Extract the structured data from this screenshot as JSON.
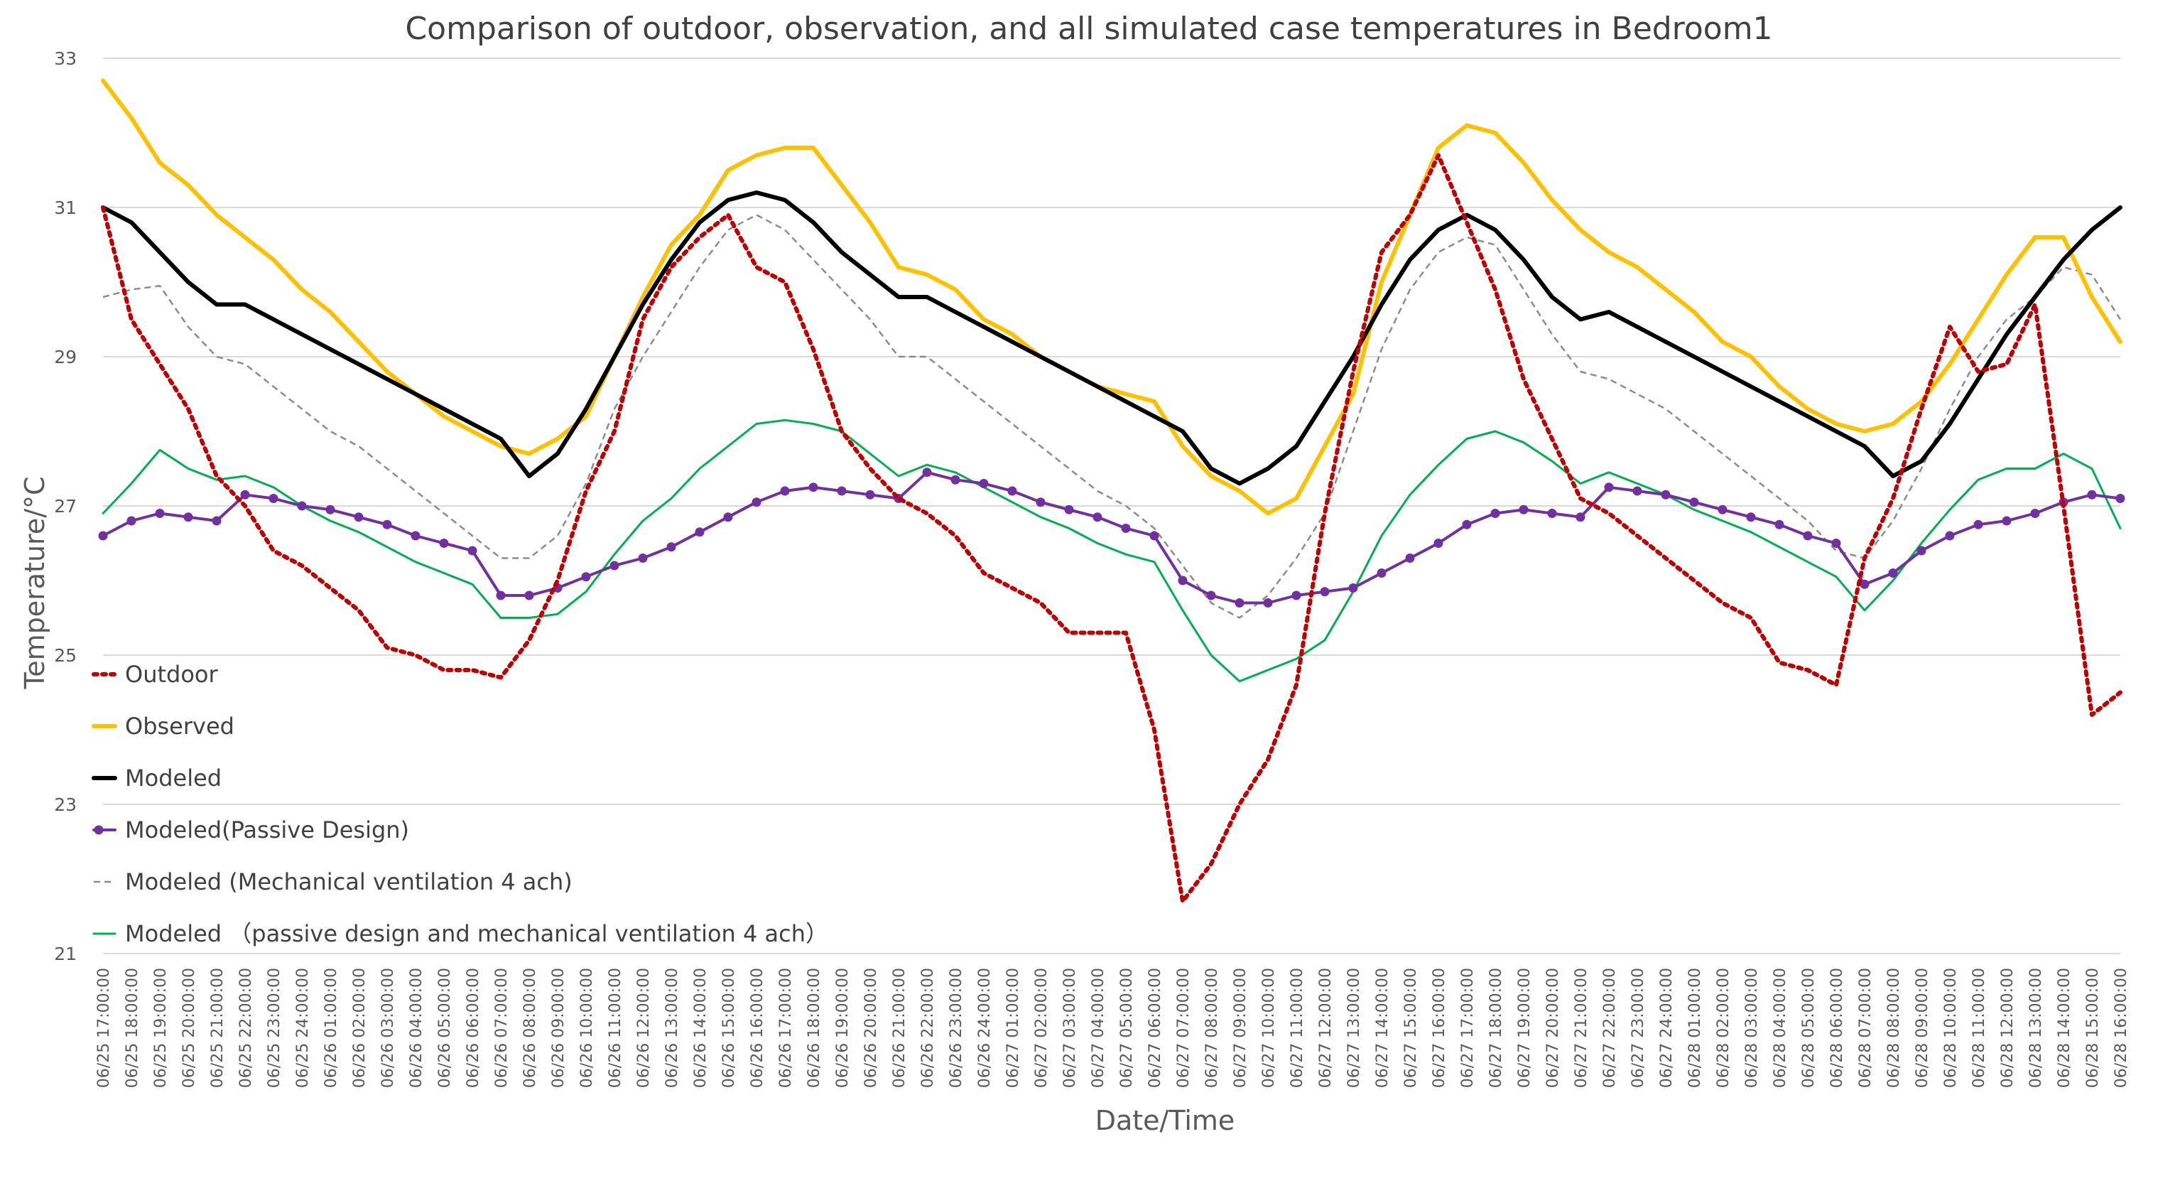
{
  "chart_data": {
    "type": "line",
    "title": "Comparison of outdoor, observation, and all simulated case temperatures in Bedroom1",
    "xlabel": "Date/Time",
    "ylabel": "Temperature/°C",
    "ylim": [
      21,
      33
    ],
    "yticks": [
      21,
      23,
      25,
      27,
      29,
      31,
      33
    ],
    "grid": "horizontal",
    "legend_position": "lower-left",
    "categories": [
      "06/25 17:00:00",
      "06/25 18:00:00",
      "06/25 19:00:00",
      "06/25 20:00:00",
      "06/25 21:00:00",
      "06/25 22:00:00",
      "06/25 23:00:00",
      "06/25 24:00:00",
      "06/26 01:00:00",
      "06/26 02:00:00",
      "06/26 03:00:00",
      "06/26 04:00:00",
      "06/26 05:00:00",
      "06/26 06:00:00",
      "06/26 07:00:00",
      "06/26 08:00:00",
      "06/26 09:00:00",
      "06/26 10:00:00",
      "06/26 11:00:00",
      "06/26 12:00:00",
      "06/26 13:00:00",
      "06/26 14:00:00",
      "06/26 15:00:00",
      "06/26 16:00:00",
      "06/26 17:00:00",
      "06/26 18:00:00",
      "06/26 19:00:00",
      "06/26 20:00:00",
      "06/26 21:00:00",
      "06/26 22:00:00",
      "06/26 23:00:00",
      "06/26 24:00:00",
      "06/27 01:00:00",
      "06/27 02:00:00",
      "06/27 03:00:00",
      "06/27 04:00:00",
      "06/27 05:00:00",
      "06/27 06:00:00",
      "06/27 07:00:00",
      "06/27 08:00:00",
      "06/27 09:00:00",
      "06/27 10:00:00",
      "06/27 11:00:00",
      "06/27 12:00:00",
      "06/27 13:00:00",
      "06/27 14:00:00",
      "06/27 15:00:00",
      "06/27 16:00:00",
      "06/27 17:00:00",
      "06/27 18:00:00",
      "06/27 19:00:00",
      "06/27 20:00:00",
      "06/27 21:00:00",
      "06/27 22:00:00",
      "06/27 23:00:00",
      "06/27 24:00:00",
      "06/28 01:00:00",
      "06/28 02:00:00",
      "06/28 03:00:00",
      "06/28 04:00:00",
      "06/28 05:00:00",
      "06/28 06:00:00",
      "06/28 07:00:00",
      "06/28 08:00:00",
      "06/28 09:00:00",
      "06/28 10:00:00",
      "06/28 11:00:00",
      "06/28 12:00:00",
      "06/28 13:00:00",
      "06/28 14:00:00",
      "06/28 15:00:00",
      "06/28 16:00:00"
    ],
    "series": [
      {
        "name": "Outdoor",
        "color": "#c00000",
        "style": "dotted",
        "markers": false,
        "values": [
          31.0,
          29.5,
          28.9,
          28.3,
          27.4,
          27.0,
          26.4,
          26.2,
          25.9,
          25.6,
          25.1,
          25.0,
          24.8,
          24.8,
          24.7,
          25.2,
          26.0,
          27.2,
          28.0,
          29.5,
          30.2,
          30.6,
          30.9,
          30.2,
          30.0,
          29.1,
          28.0,
          27.5,
          27.1,
          26.9,
          26.6,
          26.1,
          25.9,
          25.7,
          25.3,
          25.3,
          25.3,
          24.0,
          21.7,
          22.2,
          23.0,
          23.6,
          24.6,
          26.9,
          28.8,
          30.4,
          30.9,
          31.7,
          30.8,
          29.9,
          28.7,
          27.9,
          27.1,
          26.9,
          26.6,
          26.3,
          26.0,
          25.7,
          25.5,
          24.9,
          24.8,
          24.6,
          26.3,
          27.1,
          28.3,
          29.4,
          28.8,
          28.9,
          29.7,
          27.0,
          24.2,
          24.5
        ]
      },
      {
        "name": "Observed",
        "color": "#ffc000",
        "style": "solid",
        "markers": false,
        "values": [
          32.7,
          32.2,
          31.6,
          31.3,
          30.9,
          30.6,
          30.3,
          29.9,
          29.6,
          29.2,
          28.8,
          28.5,
          28.2,
          28.0,
          27.8,
          27.7,
          27.9,
          28.2,
          29.0,
          29.8,
          30.5,
          30.9,
          31.5,
          31.7,
          31.8,
          31.8,
          31.3,
          30.8,
          30.2,
          30.1,
          29.9,
          29.5,
          29.3,
          29.0,
          28.8,
          28.6,
          28.5,
          28.4,
          27.8,
          27.4,
          27.2,
          26.9,
          27.1,
          27.8,
          28.5,
          30.0,
          30.9,
          31.8,
          32.1,
          32.0,
          31.6,
          31.1,
          30.7,
          30.4,
          30.2,
          29.9,
          29.6,
          29.2,
          29.0,
          28.6,
          28.3,
          28.1,
          28.0,
          28.1,
          28.4,
          28.9,
          29.5,
          30.1,
          30.6,
          30.6,
          29.8,
          29.2
        ]
      },
      {
        "name": "Modeled",
        "color": "#000000",
        "style": "solid",
        "markers": false,
        "values": [
          31.0,
          30.8,
          30.4,
          30.0,
          29.7,
          29.7,
          29.5,
          29.3,
          29.1,
          28.9,
          28.7,
          28.5,
          28.3,
          28.1,
          27.9,
          27.4,
          27.7,
          28.3,
          29.0,
          29.7,
          30.3,
          30.8,
          31.1,
          31.2,
          31.1,
          30.8,
          30.4,
          30.1,
          29.8,
          29.8,
          29.6,
          29.4,
          29.2,
          29.0,
          28.8,
          28.6,
          28.4,
          28.2,
          28.0,
          27.5,
          27.3,
          27.5,
          27.8,
          28.4,
          29.0,
          29.7,
          30.3,
          30.7,
          30.9,
          30.7,
          30.3,
          29.8,
          29.5,
          29.6,
          29.4,
          29.2,
          29.0,
          28.8,
          28.6,
          28.4,
          28.2,
          28.0,
          27.8,
          27.4,
          27.6,
          28.1,
          28.7,
          29.3,
          29.8,
          30.3,
          30.7,
          31.0
        ]
      },
      {
        "name": "Modeled(Passive Design)",
        "color": "#7030a0",
        "style": "solid",
        "markers": true,
        "values": [
          26.6,
          26.8,
          26.9,
          26.85,
          26.8,
          27.15,
          27.1,
          27.0,
          26.95,
          26.85,
          26.75,
          26.6,
          26.5,
          26.4,
          25.8,
          25.8,
          25.9,
          26.05,
          26.2,
          26.3,
          26.45,
          26.65,
          26.85,
          27.05,
          27.2,
          27.25,
          27.2,
          27.15,
          27.1,
          27.45,
          27.35,
          27.3,
          27.2,
          27.05,
          26.95,
          26.85,
          26.7,
          26.6,
          26.0,
          25.8,
          25.7,
          25.7,
          25.8,
          25.85,
          25.9,
          26.1,
          26.3,
          26.5,
          26.75,
          26.9,
          26.95,
          26.9,
          26.85,
          27.25,
          27.2,
          27.15,
          27.05,
          26.95,
          26.85,
          26.75,
          26.6,
          26.5,
          25.95,
          26.1,
          26.4,
          26.6,
          26.75,
          26.8,
          26.9,
          27.05,
          27.15,
          27.1
        ]
      },
      {
        "name": "Modeled (Mechanical ventilation 4 ach)",
        "color": "#8c8c8c",
        "style": "dashed",
        "markers": false,
        "values": [
          29.8,
          29.9,
          29.95,
          29.4,
          29.0,
          28.9,
          28.6,
          28.3,
          28.0,
          27.8,
          27.5,
          27.2,
          26.9,
          26.6,
          26.3,
          26.3,
          26.6,
          27.3,
          28.3,
          29.0,
          29.6,
          30.2,
          30.7,
          30.9,
          30.7,
          30.3,
          29.9,
          29.5,
          29.0,
          29.0,
          28.7,
          28.4,
          28.1,
          27.8,
          27.5,
          27.2,
          27.0,
          26.7,
          26.2,
          25.7,
          25.5,
          25.8,
          26.3,
          26.9,
          28.0,
          29.1,
          29.9,
          30.4,
          30.6,
          30.5,
          29.9,
          29.3,
          28.8,
          28.7,
          28.5,
          28.3,
          28.0,
          27.7,
          27.4,
          27.1,
          26.8,
          26.4,
          26.3,
          26.8,
          27.5,
          28.3,
          29.0,
          29.5,
          29.8,
          30.2,
          30.1,
          29.5
        ]
      },
      {
        "name": "Modeled （passive design and mechanical ventilation 4 ach）",
        "color": "#00b050",
        "style": "solid",
        "markers": false,
        "values": [
          26.9,
          27.3,
          27.75,
          27.5,
          27.35,
          27.4,
          27.25,
          27.0,
          26.8,
          26.65,
          26.45,
          26.25,
          26.1,
          25.95,
          25.5,
          25.5,
          25.55,
          25.85,
          26.35,
          26.8,
          27.1,
          27.5,
          27.8,
          28.1,
          28.15,
          28.1,
          28.0,
          27.7,
          27.4,
          27.55,
          27.45,
          27.25,
          27.05,
          26.85,
          26.7,
          26.5,
          26.35,
          26.25,
          25.6,
          25.0,
          24.65,
          24.8,
          24.95,
          25.2,
          25.85,
          26.6,
          27.15,
          27.55,
          27.9,
          28.0,
          27.85,
          27.6,
          27.3,
          27.45,
          27.3,
          27.15,
          26.95,
          26.8,
          26.65,
          26.45,
          26.25,
          26.05,
          25.6,
          26.0,
          26.5,
          26.95,
          27.35,
          27.5,
          27.5,
          27.7,
          27.5,
          26.7
        ]
      }
    ]
  }
}
